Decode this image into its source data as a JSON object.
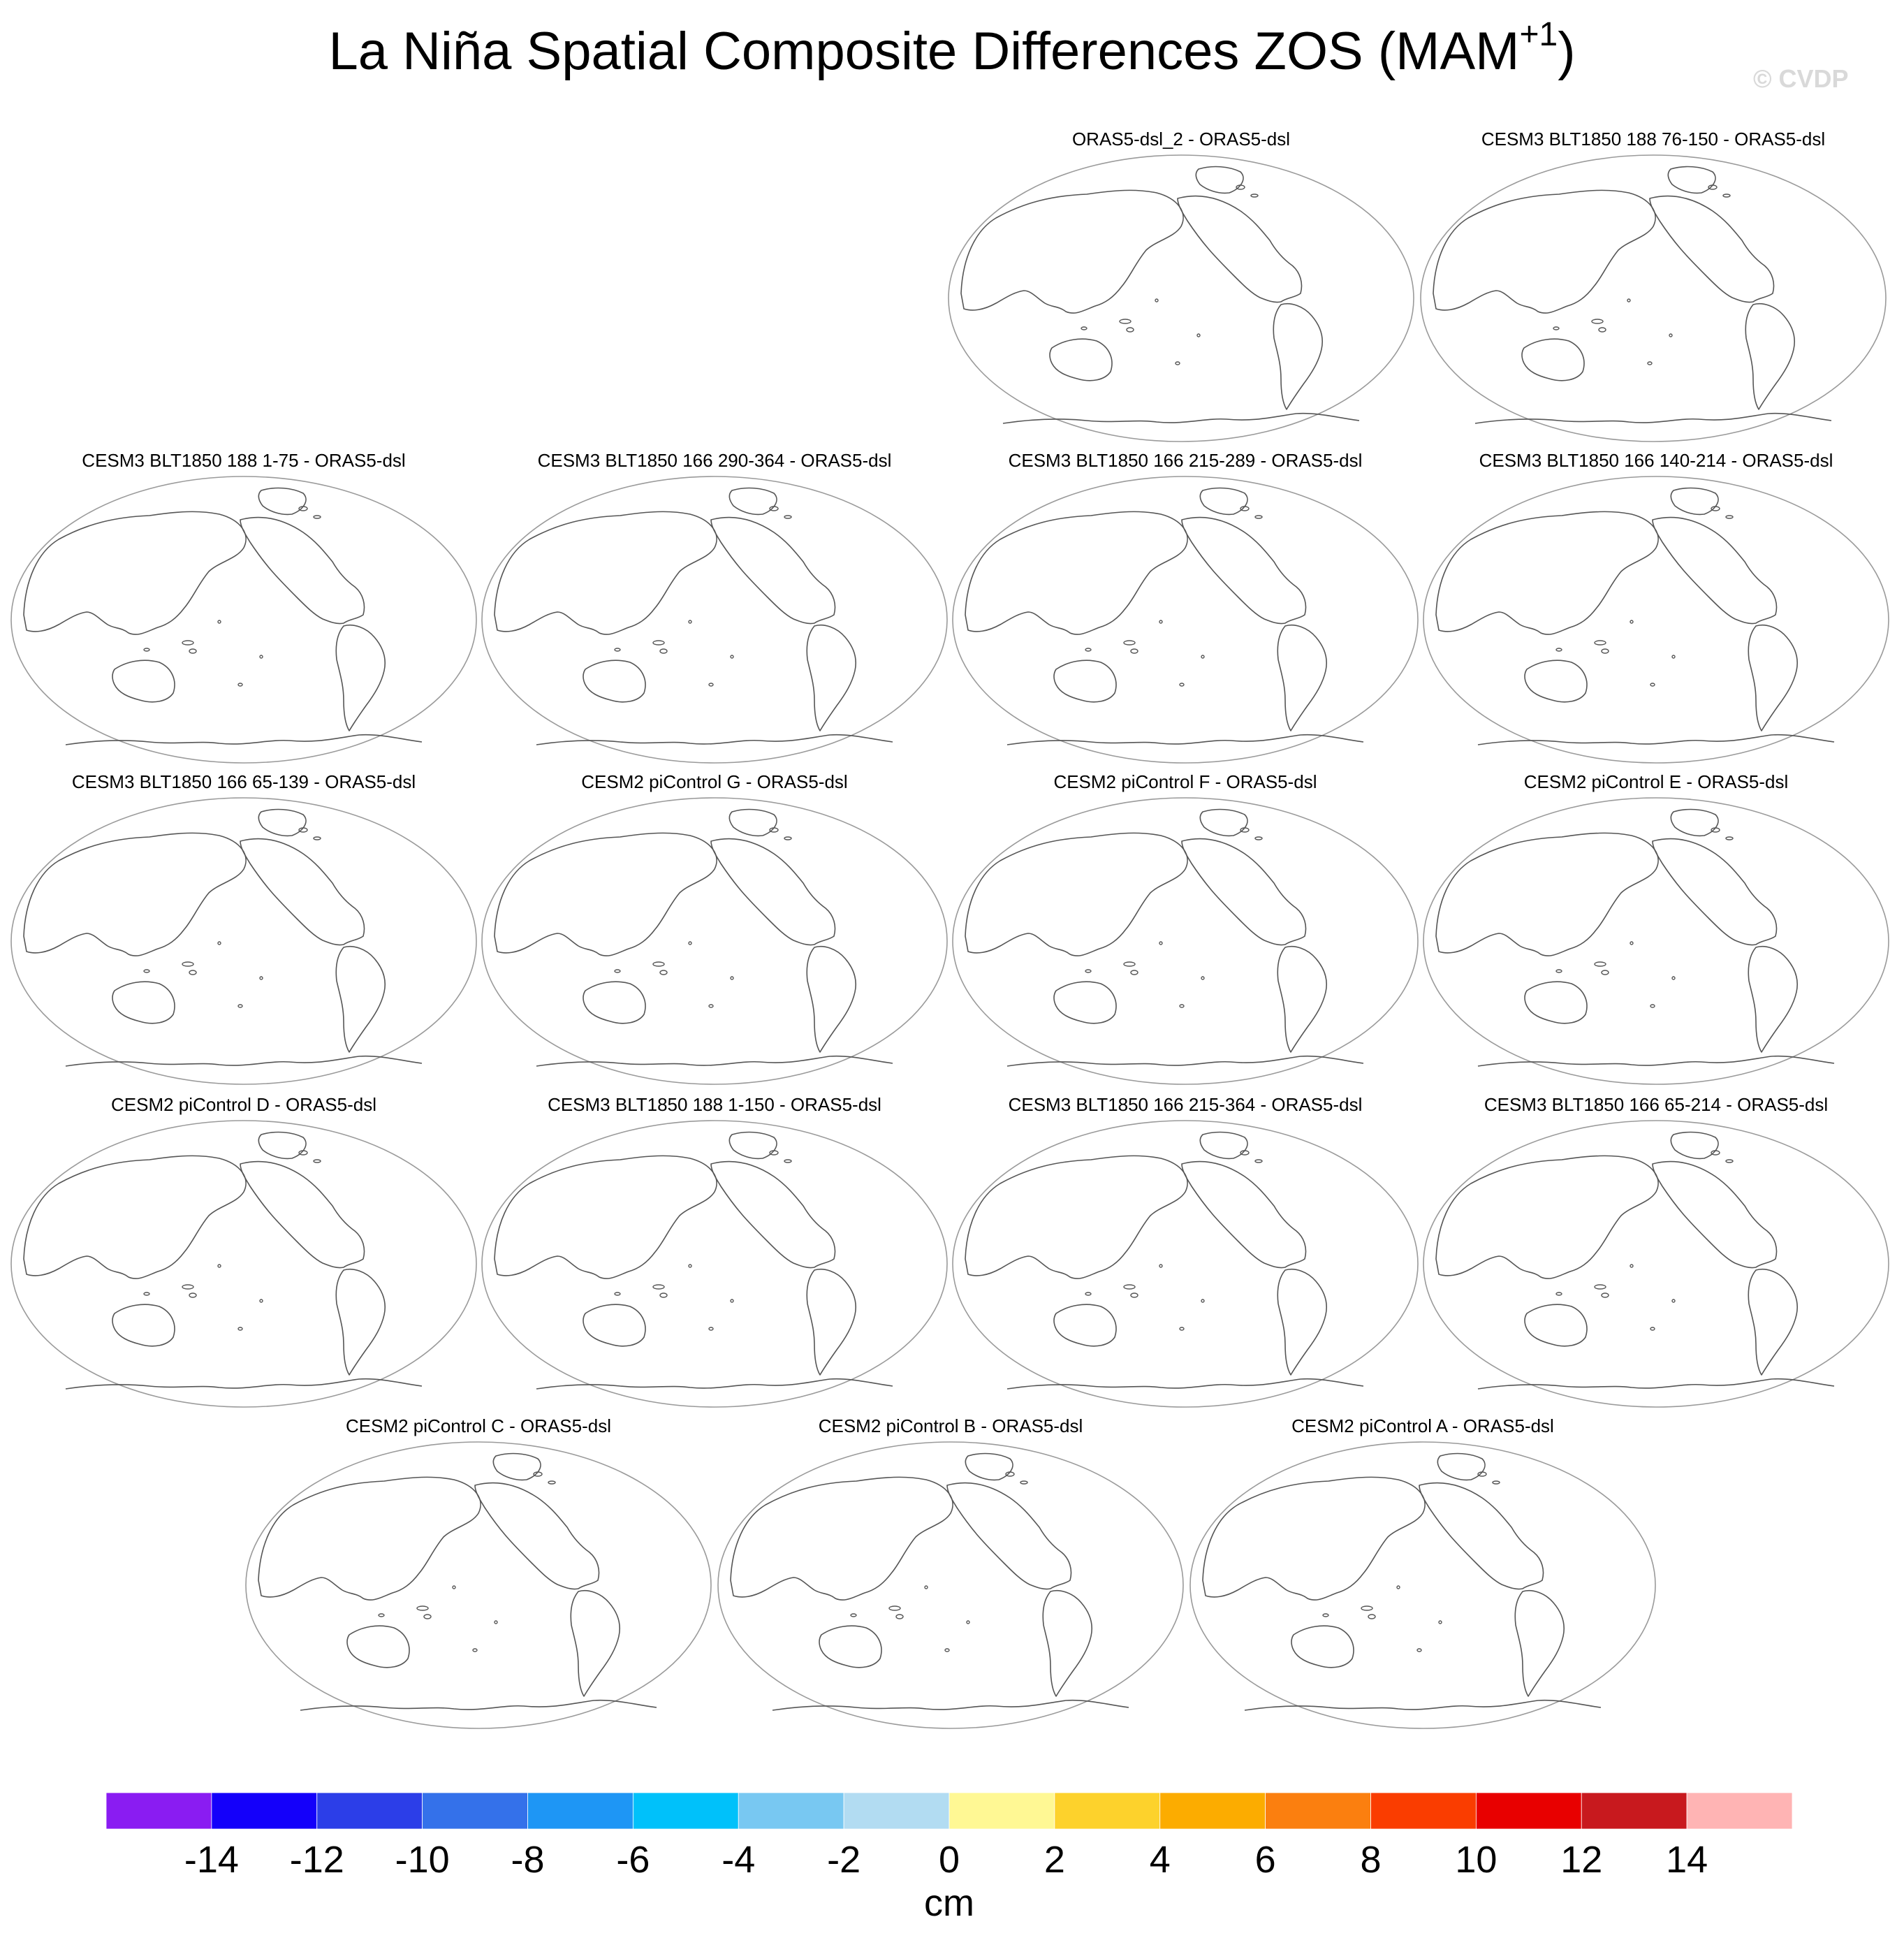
{
  "title": {
    "main": "La Niña Spatial Composite Differences ZOS (MAM",
    "sup": "+1",
    "close": ")"
  },
  "watermark": "© CVDP",
  "panels": [
    "ORAS5-dsl_2 - ORAS5-dsl",
    "CESM3 BLT1850 188 76-150 - ORAS5-dsl",
    "CESM3 BLT1850 188 1-75 - ORAS5-dsl",
    "CESM3 BLT1850 166 290-364 - ORAS5-dsl",
    "CESM3 BLT1850 166 215-289 - ORAS5-dsl",
    "CESM3 BLT1850 166 140-214 - ORAS5-dsl",
    "CESM3 BLT1850 166 65-139 - ORAS5-dsl",
    "CESM2 piControl G - ORAS5-dsl",
    "CESM2 piControl F - ORAS5-dsl",
    "CESM2 piControl E - ORAS5-dsl",
    "CESM2 piControl D - ORAS5-dsl",
    "CESM3 BLT1850 188 1-150 - ORAS5-dsl",
    "CESM3 BLT1850 166 215-364 - ORAS5-dsl",
    "CESM3 BLT1850 166 65-214 - ORAS5-dsl",
    "CESM2 piControl C - ORAS5-dsl",
    "CESM2 piControl B - ORAS5-dsl",
    "CESM2 piControl A - ORAS5-dsl"
  ],
  "chart_data": {
    "type": "heatmap",
    "title": "La Niña Spatial Composite Differences ZOS (MAM+1)",
    "projection": "Robinson, Pacific-centered",
    "panel_titles": [
      "ORAS5-dsl_2 - ORAS5-dsl",
      "CESM3 BLT1850 188 76-150 - ORAS5-dsl",
      "CESM3 BLT1850 188 1-75 - ORAS5-dsl",
      "CESM3 BLT1850 166 290-364 - ORAS5-dsl",
      "CESM3 BLT1850 166 215-289 - ORAS5-dsl",
      "CESM3 BLT1850 166 140-214 - ORAS5-dsl",
      "CESM3 BLT1850 166 65-139 - ORAS5-dsl",
      "CESM2 piControl G - ORAS5-dsl",
      "CESM2 piControl F - ORAS5-dsl",
      "CESM2 piControl E - ORAS5-dsl",
      "CESM2 piControl D - ORAS5-dsl",
      "CESM3 BLT1850 188 1-150 - ORAS5-dsl",
      "CESM3 BLT1850 166 215-364 - ORAS5-dsl",
      "CESM3 BLT1850 166 65-214 - ORAS5-dsl",
      "CESM2 piControl C - ORAS5-dsl",
      "CESM2 piControl B - ORAS5-dsl",
      "CESM2 piControl A - ORAS5-dsl"
    ],
    "colorbar": {
      "label": "cm",
      "ticks": [
        -14,
        -12,
        -10,
        -8,
        -6,
        -4,
        -2,
        0,
        2,
        4,
        6,
        8,
        10,
        12,
        14
      ],
      "tick_labels": [
        "-14",
        "-12",
        "-10",
        "-8",
        "-6",
        "-4",
        "-2",
        "0",
        "2",
        "4",
        "6",
        "8",
        "10",
        "12",
        "14"
      ],
      "colors": [
        "#8a1cf2",
        "#1400fa",
        "#2c3ee8",
        "#3471ea",
        "#1e96f5",
        "#00c1fa",
        "#78c8f2",
        "#b2dcf2",
        "#fff894",
        "#fdd22c",
        "#fcac00",
        "#fb7f0f",
        "#fa3d00",
        "#e80000",
        "#c8191e",
        "#ffb4b4"
      ]
    }
  }
}
